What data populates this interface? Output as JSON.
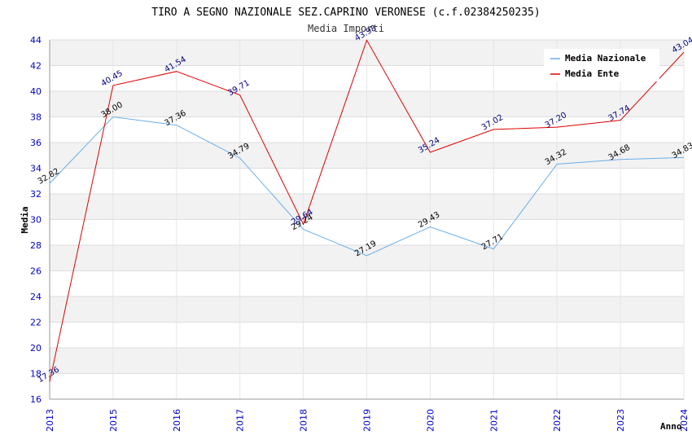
{
  "chart_data": {
    "type": "line",
    "title": "TIRO A SEGNO NAZIONALE SEZ.CAPRINO VERONESE (c.f.02384250235)",
    "subtitle": "Media Importi",
    "xlabel": "Anno",
    "ylabel": "Media",
    "ylim": [
      16,
      44
    ],
    "ytick_step": 2,
    "x": [
      "2013",
      "2015",
      "2016",
      "2017",
      "2018",
      "2019",
      "2020",
      "2021",
      "2022",
      "2023",
      "2024"
    ],
    "series": [
      {
        "name": "Media Nazionale",
        "color": "#6aaee8",
        "values": [
          32.82,
          38.0,
          37.36,
          34.79,
          29.24,
          27.19,
          29.43,
          27.71,
          34.32,
          34.68,
          34.83
        ],
        "labels": [
          "32.82",
          "38.00",
          "37.36",
          "34.79",
          "29.24",
          "27.19",
          "29.43",
          "27.71",
          "34.32",
          "34.68",
          "34.83"
        ]
      },
      {
        "name": "Media Ente",
        "color": "#e00000",
        "values": [
          17.36,
          40.45,
          41.54,
          39.71,
          29.64,
          43.98,
          35.24,
          37.02,
          37.2,
          37.74,
          43.04
        ],
        "labels": [
          "17.36",
          "40.45",
          "41.54",
          "39.71",
          "29.64",
          "43.98",
          "35.24",
          "37.02",
          "37.20",
          "37.74",
          "43.04"
        ]
      }
    ],
    "grid": true,
    "legend": "top-right"
  }
}
